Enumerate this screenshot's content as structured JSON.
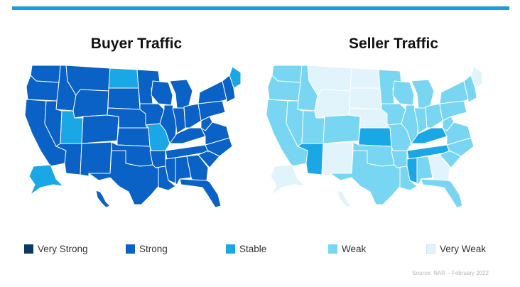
{
  "maps": {
    "buyer": {
      "title": "Buyer Traffic",
      "levels": {
        "WA": "strong",
        "OR": "strong",
        "CA": "strong",
        "ID": "strong",
        "NV": "strong",
        "UT": "stable",
        "AZ": "strong",
        "MT": "strong",
        "WY": "strong",
        "CO": "strong",
        "NM": "strong",
        "ND": "stable",
        "SD": "strong",
        "NE": "strong",
        "KS": "strong",
        "OK": "strong",
        "TX": "strong",
        "MN": "strong",
        "IA": "strong",
        "MO": "stable",
        "AR": "strong",
        "LA": "strong",
        "WI": "strong",
        "IL": "strong",
        "MI": "strong",
        "IN": "strong",
        "OH": "strong",
        "KY": "strong",
        "TN": "strong",
        "MS": "strong",
        "AL": "strong",
        "GA": "strong",
        "FL": "strong",
        "SC": "strong",
        "NC": "strong",
        "VA": "strong",
        "WV": "strong",
        "PA": "strong",
        "NY": "strong",
        "ME": "stable",
        "NE_REGION": "strong",
        "AK": "stable",
        "HI": "strong"
      }
    },
    "seller": {
      "title": "Seller Traffic",
      "levels": {
        "WA": "weak",
        "OR": "weak",
        "CA": "weak",
        "ID": "weak",
        "NV": "weak",
        "UT": "weak",
        "AZ": "stable",
        "MT": "very_weak",
        "WY": "very_weak",
        "CO": "weak",
        "NM": "very_weak",
        "ND": "very_weak",
        "SD": "very_weak",
        "NE": "very_weak",
        "KS": "stable",
        "OK": "weak",
        "TX": "weak",
        "MN": "weak",
        "IA": "weak",
        "MO": "weak",
        "AR": "weak",
        "LA": "weak",
        "WI": "weak",
        "IL": "weak",
        "MI": "weak",
        "IN": "weak",
        "OH": "weak",
        "KY": "stable",
        "TN": "stable",
        "MS": "stable",
        "AL": "weak",
        "GA": "very_weak",
        "FL": "weak",
        "SC": "weak",
        "NC": "weak",
        "VA": "weak",
        "WV": "weak",
        "PA": "weak",
        "NY": "weak",
        "ME": "very_weak",
        "NE_REGION": "weak",
        "AK": "very_weak",
        "HI": "very_weak"
      }
    }
  },
  "colors": {
    "very_strong": "#0b3a66",
    "strong": "#0a62c6",
    "stable": "#1aa7e6",
    "weak": "#78d6f3",
    "very_weak": "#e1f3fb"
  },
  "legend": [
    {
      "key": "very_strong",
      "label": "Very Strong"
    },
    {
      "key": "strong",
      "label": "Strong"
    },
    {
      "key": "stable",
      "label": "Stable"
    },
    {
      "key": "weak",
      "label": "Weak"
    },
    {
      "key": "very_weak",
      "label": "Very Weak"
    }
  ],
  "source": "Source: NAR – February 2022"
}
